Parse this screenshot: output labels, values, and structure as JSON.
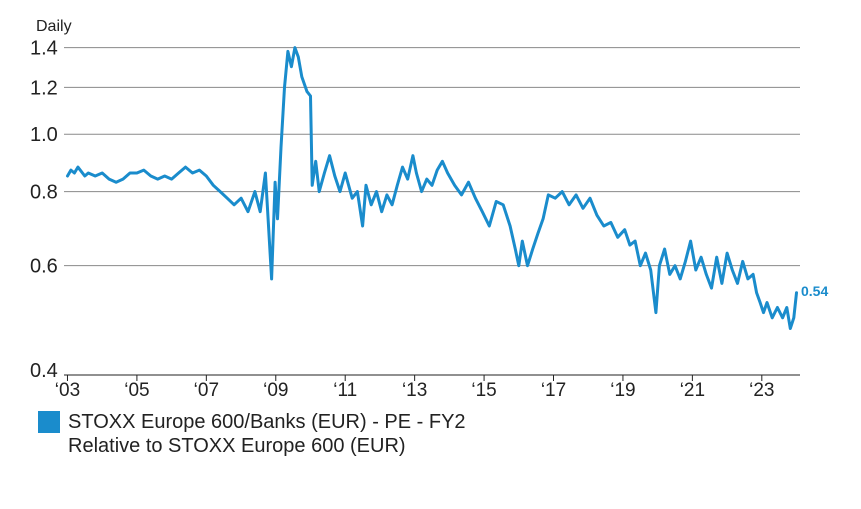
{
  "chart_data": {
    "type": "line",
    "title": "",
    "frequency_label": "Daily",
    "xlabel": "",
    "ylabel": "",
    "y_scale": "log",
    "ylim": [
      0.4,
      1.42
    ],
    "y_ticks": [
      0.4,
      0.6,
      0.8,
      1.0,
      1.2,
      1.4
    ],
    "y_tick_labels": [
      "0.4",
      "0.6",
      "0.8",
      "1.0",
      "1.2",
      "1.4"
    ],
    "xlim": [
      2002.9,
      2024.1
    ],
    "x_ticks": [
      2003,
      2005,
      2007,
      2009,
      2011,
      2013,
      2015,
      2017,
      2019,
      2021,
      2023
    ],
    "x_tick_labels": [
      "‘03",
      "‘05",
      "‘07",
      "‘09",
      "‘11",
      "‘13",
      "‘15",
      "‘17",
      "‘19",
      "‘21",
      "‘23"
    ],
    "grid": true,
    "series": [
      {
        "name": "STOXX Europe 600/Banks (EUR) - PE - FY2 Relative to STOXX Europe 600 (EUR)",
        "color": "#1a8ccc",
        "last_value_label": "0.54",
        "points": [
          [
            2003.0,
            0.85
          ],
          [
            2003.1,
            0.87
          ],
          [
            2003.2,
            0.86
          ],
          [
            2003.3,
            0.88
          ],
          [
            2003.5,
            0.85
          ],
          [
            2003.6,
            0.86
          ],
          [
            2003.8,
            0.85
          ],
          [
            2004.0,
            0.86
          ],
          [
            2004.2,
            0.84
          ],
          [
            2004.4,
            0.83
          ],
          [
            2004.6,
            0.84
          ],
          [
            2004.8,
            0.86
          ],
          [
            2005.0,
            0.86
          ],
          [
            2005.2,
            0.87
          ],
          [
            2005.4,
            0.85
          ],
          [
            2005.6,
            0.84
          ],
          [
            2005.8,
            0.85
          ],
          [
            2006.0,
            0.84
          ],
          [
            2006.2,
            0.86
          ],
          [
            2006.4,
            0.88
          ],
          [
            2006.6,
            0.86
          ],
          [
            2006.8,
            0.87
          ],
          [
            2007.0,
            0.85
          ],
          [
            2007.2,
            0.82
          ],
          [
            2007.4,
            0.8
          ],
          [
            2007.6,
            0.78
          ],
          [
            2007.8,
            0.76
          ],
          [
            2008.0,
            0.78
          ],
          [
            2008.2,
            0.74
          ],
          [
            2008.4,
            0.8
          ],
          [
            2008.55,
            0.74
          ],
          [
            2008.7,
            0.86
          ],
          [
            2008.78,
            0.72
          ],
          [
            2008.88,
            0.57
          ],
          [
            2008.98,
            0.83
          ],
          [
            2009.05,
            0.72
          ],
          [
            2009.15,
            0.95
          ],
          [
            2009.25,
            1.2
          ],
          [
            2009.35,
            1.38
          ],
          [
            2009.45,
            1.3
          ],
          [
            2009.55,
            1.4
          ],
          [
            2009.65,
            1.35
          ],
          [
            2009.75,
            1.25
          ],
          [
            2009.9,
            1.18
          ],
          [
            2010.0,
            1.16
          ],
          [
            2010.05,
            0.82
          ],
          [
            2010.15,
            0.9
          ],
          [
            2010.25,
            0.8
          ],
          [
            2010.4,
            0.86
          ],
          [
            2010.55,
            0.92
          ],
          [
            2010.7,
            0.85
          ],
          [
            2010.85,
            0.8
          ],
          [
            2011.0,
            0.86
          ],
          [
            2011.2,
            0.78
          ],
          [
            2011.35,
            0.8
          ],
          [
            2011.5,
            0.7
          ],
          [
            2011.6,
            0.82
          ],
          [
            2011.75,
            0.76
          ],
          [
            2011.9,
            0.8
          ],
          [
            2012.05,
            0.74
          ],
          [
            2012.2,
            0.79
          ],
          [
            2012.35,
            0.76
          ],
          [
            2012.5,
            0.82
          ],
          [
            2012.65,
            0.88
          ],
          [
            2012.8,
            0.84
          ],
          [
            2012.95,
            0.92
          ],
          [
            2013.05,
            0.86
          ],
          [
            2013.2,
            0.8
          ],
          [
            2013.35,
            0.84
          ],
          [
            2013.5,
            0.82
          ],
          [
            2013.65,
            0.87
          ],
          [
            2013.8,
            0.9
          ],
          [
            2013.95,
            0.86
          ],
          [
            2014.15,
            0.82
          ],
          [
            2014.35,
            0.79
          ],
          [
            2014.55,
            0.83
          ],
          [
            2014.75,
            0.78
          ],
          [
            2014.95,
            0.74
          ],
          [
            2015.15,
            0.7
          ],
          [
            2015.35,
            0.77
          ],
          [
            2015.55,
            0.76
          ],
          [
            2015.75,
            0.7
          ],
          [
            2015.9,
            0.64
          ],
          [
            2016.0,
            0.6
          ],
          [
            2016.1,
            0.66
          ],
          [
            2016.25,
            0.6
          ],
          [
            2016.4,
            0.64
          ],
          [
            2016.55,
            0.68
          ],
          [
            2016.7,
            0.72
          ],
          [
            2016.85,
            0.79
          ],
          [
            2017.05,
            0.78
          ],
          [
            2017.25,
            0.8
          ],
          [
            2017.45,
            0.76
          ],
          [
            2017.65,
            0.79
          ],
          [
            2017.85,
            0.75
          ],
          [
            2018.05,
            0.78
          ],
          [
            2018.25,
            0.73
          ],
          [
            2018.45,
            0.7
          ],
          [
            2018.65,
            0.71
          ],
          [
            2018.85,
            0.67
          ],
          [
            2019.05,
            0.69
          ],
          [
            2019.2,
            0.65
          ],
          [
            2019.35,
            0.66
          ],
          [
            2019.5,
            0.6
          ],
          [
            2019.65,
            0.63
          ],
          [
            2019.8,
            0.59
          ],
          [
            2019.95,
            0.5
          ],
          [
            2020.05,
            0.6
          ],
          [
            2020.2,
            0.64
          ],
          [
            2020.35,
            0.58
          ],
          [
            2020.5,
            0.6
          ],
          [
            2020.65,
            0.57
          ],
          [
            2020.8,
            0.61
          ],
          [
            2020.95,
            0.66
          ],
          [
            2021.1,
            0.59
          ],
          [
            2021.25,
            0.62
          ],
          [
            2021.4,
            0.58
          ],
          [
            2021.55,
            0.55
          ],
          [
            2021.7,
            0.62
          ],
          [
            2021.85,
            0.56
          ],
          [
            2022.0,
            0.63
          ],
          [
            2022.15,
            0.59
          ],
          [
            2022.3,
            0.56
          ],
          [
            2022.45,
            0.61
          ],
          [
            2022.6,
            0.57
          ],
          [
            2022.75,
            0.58
          ],
          [
            2022.85,
            0.54
          ],
          [
            2022.95,
            0.52
          ],
          [
            2023.05,
            0.5
          ],
          [
            2023.15,
            0.52
          ],
          [
            2023.3,
            0.49
          ],
          [
            2023.45,
            0.51
          ],
          [
            2023.6,
            0.49
          ],
          [
            2023.72,
            0.51
          ],
          [
            2023.82,
            0.47
          ],
          [
            2023.92,
            0.49
          ],
          [
            2024.0,
            0.54
          ]
        ]
      }
    ],
    "legend": {
      "position": "bottom-left",
      "lines": [
        "STOXX Europe 600/Banks (EUR) - PE - FY2",
        "Relative to STOXX Europe 600 (EUR)"
      ]
    },
    "colors": {
      "series": "#1a8ccc",
      "grid": "#8a8a8a",
      "axis": "#222222"
    }
  }
}
